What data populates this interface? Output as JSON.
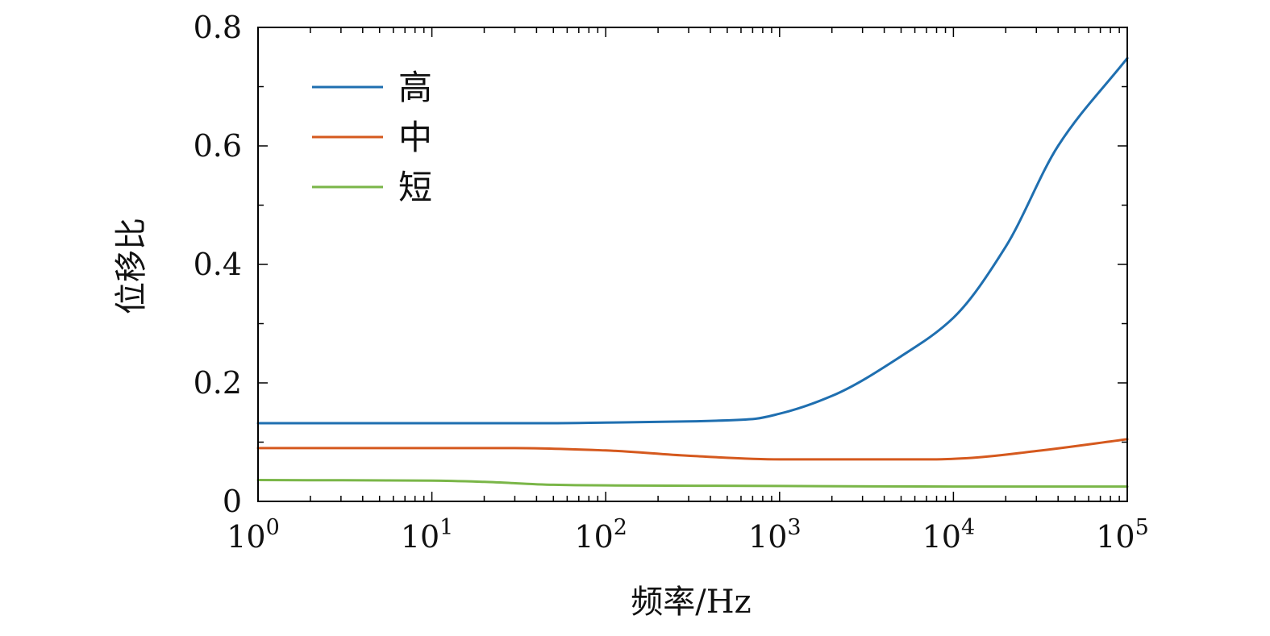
{
  "chart_data": {
    "type": "line",
    "title": "",
    "xlabel": "频率/Hz",
    "ylabel": "位移比",
    "x_scale": "log",
    "xlim": [
      1,
      100000
    ],
    "ylim": [
      0,
      0.8
    ],
    "x_ticks": [
      {
        "base": "10",
        "exp": "0"
      },
      {
        "base": "10",
        "exp": "1"
      },
      {
        "base": "10",
        "exp": "2"
      },
      {
        "base": "10",
        "exp": "3"
      },
      {
        "base": "10",
        "exp": "4"
      },
      {
        "base": "10",
        "exp": "5"
      }
    ],
    "y_ticks": [
      "0",
      "0.2",
      "0.4",
      "0.6",
      "0.8"
    ],
    "grid": false,
    "legend_position": "top-left",
    "series": [
      {
        "name": "高",
        "color": "#1f6fb0",
        "points": [
          [
            1,
            0.132
          ],
          [
            10,
            0.132
          ],
          [
            50,
            0.132
          ],
          [
            100,
            0.133
          ],
          [
            300,
            0.135
          ],
          [
            700,
            0.139
          ],
          [
            1000,
            0.148
          ],
          [
            2000,
            0.178
          ],
          [
            5000,
            0.245
          ],
          [
            10000,
            0.31
          ],
          [
            20000,
            0.43
          ],
          [
            40000,
            0.6
          ],
          [
            100000,
            0.748
          ]
        ]
      },
      {
        "name": "中",
        "color": "#d5591e",
        "points": [
          [
            1,
            0.09
          ],
          [
            10,
            0.09
          ],
          [
            30,
            0.09
          ],
          [
            100,
            0.086
          ],
          [
            300,
            0.077
          ],
          [
            1000,
            0.071
          ],
          [
            3000,
            0.071
          ],
          [
            8000,
            0.071
          ],
          [
            12000,
            0.073
          ],
          [
            30000,
            0.085
          ],
          [
            100000,
            0.105
          ]
        ]
      },
      {
        "name": "短",
        "color": "#7ab648",
        "points": [
          [
            1,
            0.036
          ],
          [
            10,
            0.035
          ],
          [
            20,
            0.033
          ],
          [
            50,
            0.028
          ],
          [
            100,
            0.027
          ],
          [
            1000,
            0.026
          ],
          [
            10000,
            0.025
          ],
          [
            100000,
            0.025
          ]
        ]
      }
    ]
  }
}
